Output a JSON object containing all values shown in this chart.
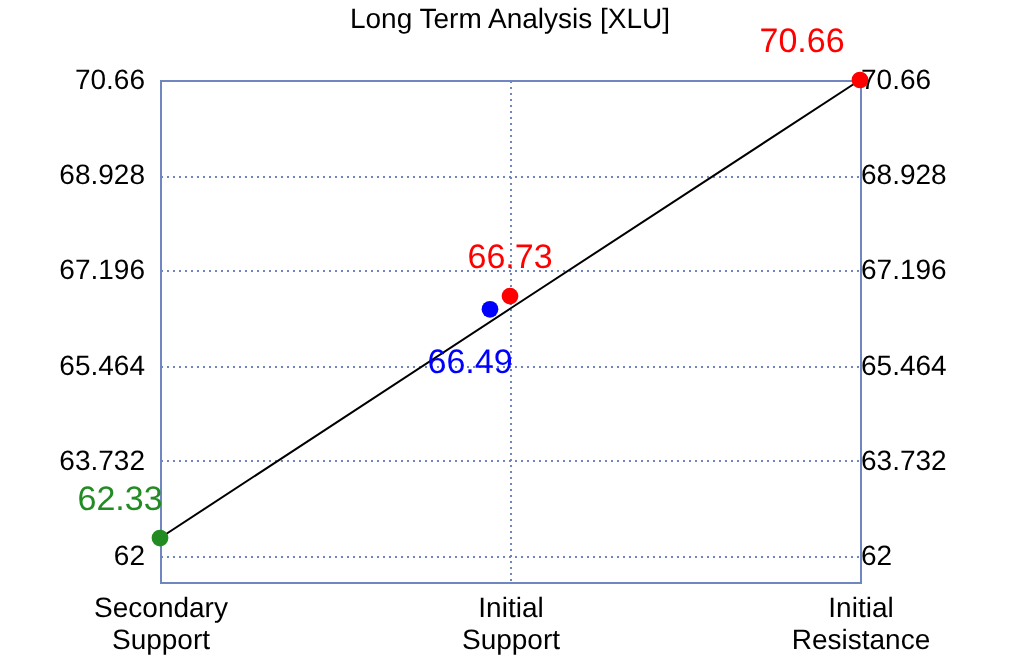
{
  "chart_data": {
    "type": "scatter",
    "title": "Long Term Analysis [XLU]",
    "categories": [
      "Secondary Support",
      "Initial Support",
      "Initial Resistance"
    ],
    "series": [
      {
        "type": "line",
        "color": "#000000",
        "values": [
          62.33,
          66.5,
          70.66
        ]
      },
      {
        "color": "#228b22",
        "values": [
          62.33,
          null,
          null
        ],
        "value_labels": [
          "62.33",
          null,
          null
        ]
      },
      {
        "color": "#0000ff",
        "values": [
          null,
          66.49,
          null
        ],
        "value_labels": [
          null,
          "66.49",
          null
        ]
      },
      {
        "color": "#ff0000",
        "values": [
          null,
          66.73,
          70.66
        ],
        "value_labels": [
          null,
          "66.73",
          "70.66"
        ]
      }
    ],
    "ylim": [
      61.53,
      70.66
    ],
    "yticks": [
      62,
      63.732,
      65.464,
      67.196,
      68.928,
      70.66
    ],
    "y2lim": [
      61.53,
      70.66
    ],
    "y2ticks": [
      62,
      63.732,
      65.464,
      67.196,
      68.928,
      70.66
    ],
    "grid": true
  }
}
